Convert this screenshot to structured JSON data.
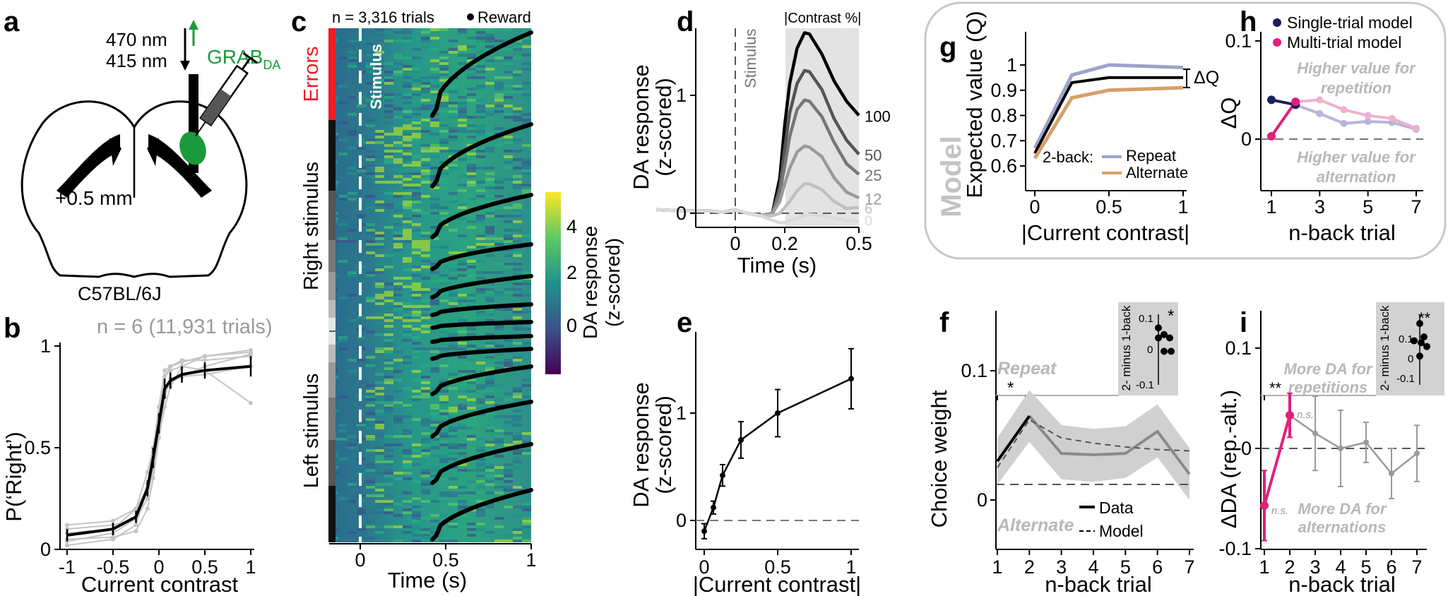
{
  "panel_letters": {
    "a": "a",
    "b": "b",
    "c": "c",
    "d": "d",
    "e": "e",
    "f": "f",
    "g": "g",
    "h": "h",
    "i": "i"
  },
  "colors": {
    "black": "#000000",
    "grey": "#9a9a9a",
    "light_grey": "#c8c8c8",
    "red": "#ee1c24",
    "green": "#1a9a3c",
    "magenta": "#e0207a",
    "navy": "#1b1f5a",
    "repeat": "#9ea3c8",
    "alternate": "#d6a069",
    "pink": "#f0b0cf",
    "lavender": "#b7b5d8"
  },
  "panel_a": {
    "wavelength_1": "470 nm",
    "wavelength_2": "415 nm",
    "sensor": "GRAB",
    "sensor_sub": "DA",
    "coordinate": "+0.5 mm",
    "strain": "C57BL/6J"
  },
  "panel_b": {
    "count_text": "n = 6 (11,931 trials)",
    "ylabel": "P(‘Right’)",
    "xlabel": "Current contrast",
    "xticks": [
      "-1",
      "-0.5",
      "0",
      "0.5",
      "1"
    ],
    "yticks": [
      "0",
      "0.5",
      "1"
    ]
  },
  "panel_c": {
    "count_text": "n = 3,316 trials",
    "reward_text": "Reward",
    "stimulus_text": "Stimulus",
    "errors_text": "Errors",
    "right_text": "Right stimulus",
    "left_text": "Left stimulus",
    "xlabel": "Time (s)",
    "xticks": [
      "0",
      "0.5",
      "1"
    ],
    "colorbar_label_1": "DA response",
    "colorbar_label_2": "(z-scored)",
    "colorbar_ticks": [
      "0",
      "2",
      "4"
    ]
  },
  "panel_d": {
    "ylabel_1": "DA response",
    "ylabel_2": "(z-scored)",
    "xlabel": "Time (s)",
    "stimulus_text": "Stimulus",
    "legend_title": "|Contrast %|",
    "contrast_labels": [
      "100",
      "50",
      "25",
      "12",
      "6",
      "0"
    ],
    "xticks": [
      "0",
      "0.2",
      "0.5"
    ],
    "yticks": [
      "0",
      "1"
    ]
  },
  "panel_e": {
    "ylabel_1": "DA response",
    "ylabel_2": "(z-scored)",
    "xlabel": "|Current contrast|",
    "xticks": [
      "0",
      "0.5",
      "1"
    ],
    "yticks": [
      "0",
      "1"
    ]
  },
  "panel_f": {
    "ylabel": "Choice weight",
    "xlabel": "n-back trial",
    "repeat_text": "Repeat",
    "alternate_text": "Alternate",
    "star": "*",
    "inset_star": "*",
    "legend_data": "Data",
    "legend_model": "Model",
    "inset_label": "2- minus 1-back",
    "inset_ticks": [
      "0.1",
      "0",
      "-0.1"
    ],
    "xticks": [
      "1",
      "2",
      "3",
      "4",
      "5",
      "6",
      "7"
    ],
    "yticks": [
      "0",
      "0.1"
    ]
  },
  "panel_g": {
    "model_text": "Model",
    "ylabel": "Expected value (Q)",
    "xlabel": "|Current contrast|",
    "dq_text": "ΔQ",
    "legend_prefix": "2-back:",
    "legend_repeat": "Repeat",
    "legend_alternate": "Alternate",
    "xticks": [
      "0",
      "0.5",
      "1"
    ],
    "yticks": [
      "0.6",
      "0.7",
      "0.8",
      "0.9",
      "1"
    ]
  },
  "panel_h": {
    "legend_single": "Single-trial model",
    "legend_multi": "Multi-trial model",
    "text_high_rep_1": "Higher value for",
    "text_high_rep_2": "repetition",
    "text_high_alt_1": "Higher value for",
    "text_high_alt_2": "alternation",
    "ylabel": "ΔQ",
    "xlabel": "n-back trial",
    "xticks": [
      "1",
      "3",
      "5",
      "7"
    ],
    "yticks": [
      "0",
      "0.1"
    ]
  },
  "panel_i": {
    "ylabel": "ΔDA (rep.-alt.)",
    "xlabel": "n-back trial",
    "text_more_rep_1": "More DA for",
    "text_more_rep_2": "repetitions",
    "text_more_alt_1": "More DA for",
    "text_more_alt_2": "alternations",
    "star": "**",
    "inset_star": "**",
    "ns_1": "n.s.",
    "ns_2": "n.s.",
    "inset_label": "2- minus 1-back",
    "inset_ticks": [
      "0.1",
      "0",
      "-0.1"
    ],
    "xticks": [
      "1",
      "2",
      "3",
      "4",
      "5",
      "6",
      "7"
    ],
    "yticks": [
      "-0.1",
      "0",
      "0.1"
    ]
  },
  "chart_data": [
    {
      "panel": "b",
      "type": "line",
      "xlabel": "Current contrast",
      "ylabel": "P(‘Right’)",
      "xlim": [
        -1,
        1
      ],
      "ylim": [
        0,
        1
      ],
      "x": [
        -1,
        -0.5,
        -0.25,
        -0.125,
        -0.0625,
        0,
        0.0625,
        0.125,
        0.25,
        0.5,
        1
      ],
      "series": [
        {
          "name": "mean",
          "values": [
            0.07,
            0.1,
            0.16,
            0.3,
            0.45,
            0.62,
            0.79,
            0.83,
            0.86,
            0.88,
            0.9
          ],
          "err": [
            0.03,
            0.03,
            0.03,
            0.04,
            0.05,
            0.05,
            0.05,
            0.04,
            0.04,
            0.04,
            0.05
          ]
        }
      ],
      "individual": [
        [
          0.12,
          0.14,
          0.2,
          0.3,
          0.38,
          0.55,
          0.7,
          0.8,
          0.9,
          0.95,
          0.97
        ],
        [
          0.1,
          0.12,
          0.15,
          0.25,
          0.4,
          0.6,
          0.85,
          0.9,
          0.92,
          0.95,
          0.98
        ],
        [
          0.05,
          0.06,
          0.09,
          0.2,
          0.35,
          0.55,
          0.75,
          0.84,
          0.85,
          0.86,
          0.9
        ],
        [
          0.02,
          0.05,
          0.12,
          0.3,
          0.5,
          0.7,
          0.85,
          0.88,
          0.9,
          0.88,
          0.72
        ],
        [
          0.04,
          0.08,
          0.15,
          0.32,
          0.48,
          0.65,
          0.8,
          0.82,
          0.85,
          0.9,
          0.96
        ],
        [
          0.08,
          0.1,
          0.2,
          0.38,
          0.5,
          0.7,
          0.88,
          0.9,
          0.93,
          0.93,
          0.95
        ]
      ]
    },
    {
      "panel": "d",
      "type": "line",
      "xlabel": "Time (s)",
      "xlim": [
        -0.32,
        0.5
      ],
      "ylim": [
        -0.12,
        1.55
      ],
      "x": [
        -0.32,
        -0.2,
        -0.1,
        -0.05,
        0,
        0.05,
        0.1,
        0.15,
        0.18,
        0.2,
        0.22,
        0.25,
        0.28,
        0.3,
        0.35,
        0.4,
        0.45,
        0.5
      ],
      "series": [
        {
          "name": "100",
          "values": [
            0.03,
            0.02,
            0.02,
            0.01,
            0.03,
            0.0,
            -0.02,
            0.0,
            0.3,
            0.75,
            1.1,
            1.4,
            1.53,
            1.52,
            1.35,
            1.12,
            0.95,
            0.83
          ]
        },
        {
          "name": "50",
          "values": [
            0.03,
            0.02,
            0.02,
            0.01,
            0.03,
            0.0,
            -0.02,
            0.0,
            0.22,
            0.55,
            0.85,
            1.1,
            1.21,
            1.2,
            1.05,
            0.8,
            0.62,
            0.5
          ]
        },
        {
          "name": "25",
          "values": [
            0.03,
            0.02,
            0.02,
            0.01,
            0.03,
            0.0,
            -0.02,
            0.0,
            0.17,
            0.4,
            0.65,
            0.88,
            0.96,
            0.95,
            0.82,
            0.6,
            0.42,
            0.33
          ]
        },
        {
          "name": "12",
          "values": [
            0.03,
            0.02,
            0.02,
            0.01,
            0.03,
            0.0,
            -0.02,
            0.0,
            0.1,
            0.25,
            0.38,
            0.52,
            0.57,
            0.56,
            0.48,
            0.3,
            0.18,
            0.13
          ]
        },
        {
          "name": "6",
          "values": [
            0.03,
            0.02,
            0.02,
            0.01,
            0.03,
            0.0,
            -0.02,
            -0.02,
            0.0,
            0.05,
            0.1,
            0.19,
            0.25,
            0.25,
            0.2,
            0.1,
            0.04,
            0.05
          ]
        },
        {
          "name": "0",
          "values": [
            0.03,
            0.02,
            0.02,
            0.01,
            0.03,
            0.0,
            -0.02,
            -0.06,
            -0.08,
            -0.08,
            -0.06,
            -0.04,
            -0.02,
            -0.01,
            -0.02,
            -0.04,
            -0.06,
            -0.07
          ]
        }
      ]
    },
    {
      "panel": "e",
      "type": "line",
      "xlabel": "|Current contrast|",
      "xlim": [
        0,
        1
      ],
      "ylim": [
        -0.2,
        1.7
      ],
      "x": [
        0,
        0.0625,
        0.125,
        0.25,
        0.5,
        1
      ],
      "series": [
        {
          "name": "mean",
          "values": [
            -0.1,
            0.12,
            0.42,
            0.75,
            1.0,
            1.32
          ],
          "err": [
            0.07,
            0.06,
            0.1,
            0.17,
            0.22,
            0.28
          ]
        }
      ]
    },
    {
      "panel": "f",
      "type": "line",
      "xlabel": "n-back trial",
      "ylabel": "Choice weight",
      "xlim": [
        1,
        7
      ],
      "ylim": [
        -0.04,
        0.14
      ],
      "x": [
        1,
        2,
        3,
        4,
        5,
        6,
        7
      ],
      "zero_line": 0.012,
      "series": [
        {
          "name": "Data",
          "values": [
            0.03,
            0.065,
            0.036,
            0.035,
            0.036,
            0.053,
            0.02
          ],
          "band_low": [
            0.012,
            0.045,
            0.016,
            0.014,
            0.017,
            0.033,
            0.0
          ],
          "band_high": [
            0.048,
            0.085,
            0.058,
            0.055,
            0.057,
            0.074,
            0.04
          ]
        },
        {
          "name": "Model",
          "values": [
            0.025,
            0.062,
            0.048,
            0.044,
            0.041,
            0.039,
            0.038
          ]
        }
      ],
      "inset": {
        "ylim": [
          -0.1,
          0.1
        ],
        "points": [
          0.07,
          0.05,
          0.04,
          0.04,
          0.0,
          0.0
        ]
      }
    },
    {
      "panel": "g",
      "type": "line",
      "xlabel": "|Current contrast|",
      "ylabel": "Expected value (Q)",
      "xlim": [
        0,
        1
      ],
      "ylim": [
        0.55,
        1.05
      ],
      "x": [
        0,
        0.25,
        0.5,
        1
      ],
      "series": [
        {
          "name": "Repeat",
          "values": [
            0.67,
            0.96,
            1.0,
            0.99
          ]
        },
        {
          "name": "mean",
          "values": [
            0.65,
            0.93,
            0.95,
            0.95
          ]
        },
        {
          "name": "Alternate",
          "values": [
            0.63,
            0.87,
            0.9,
            0.91
          ]
        }
      ]
    },
    {
      "panel": "h",
      "type": "line",
      "xlabel": "n-back trial",
      "ylabel": "ΔQ",
      "xlim": [
        1,
        7
      ],
      "ylim": [
        -0.025,
        0.11
      ],
      "x": [
        1,
        2,
        3,
        4,
        5,
        6,
        7
      ],
      "series": [
        {
          "name": "Single-trial model",
          "values": [
            0.04,
            0.035,
            0.026,
            0.016,
            0.018,
            0.017,
            0.01
          ]
        },
        {
          "name": "Multi-trial model",
          "values": [
            0.003,
            0.038,
            0.04,
            0.03,
            0.024,
            0.021,
            0.011
          ]
        }
      ]
    },
    {
      "panel": "i",
      "type": "line",
      "xlabel": "n-back trial",
      "ylabel": "ΔDA (rep.-alt.)",
      "xlim": [
        1,
        7
      ],
      "ylim": [
        -0.11,
        0.12
      ],
      "x": [
        1,
        2,
        3,
        4,
        5,
        6,
        7
      ],
      "series": [
        {
          "name": "data",
          "values": [
            -0.057,
            0.033,
            0.015,
            0.0,
            0.006,
            -0.025,
            -0.005
          ],
          "err": [
            0.035,
            0.022,
            0.037,
            0.038,
            0.02,
            0.025,
            0.028
          ]
        }
      ],
      "inset": {
        "ylim": [
          -0.15,
          0.2
        ],
        "points": [
          0.17,
          0.1,
          0.08,
          0.07,
          0.05,
          0.0
        ]
      }
    }
  ]
}
